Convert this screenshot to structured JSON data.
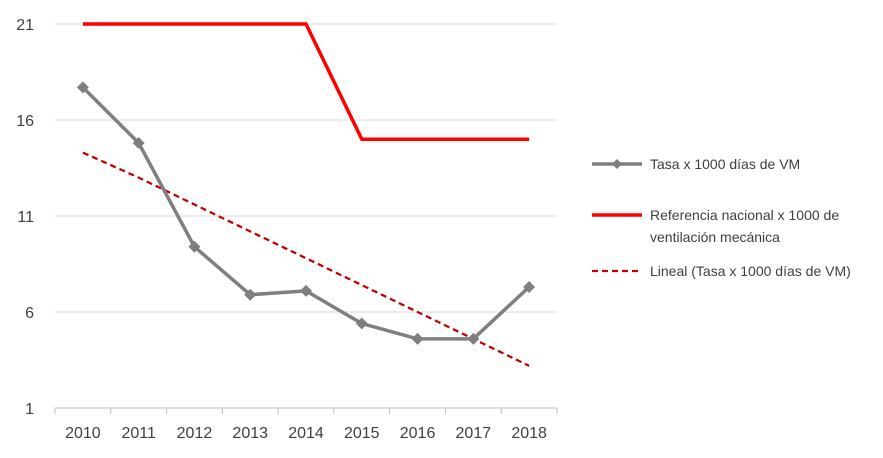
{
  "chart_data": {
    "type": "line",
    "categories": [
      "2010",
      "2011",
      "2012",
      "2013",
      "2014",
      "2015",
      "2016",
      "2017",
      "2018"
    ],
    "ylim": [
      1,
      21
    ],
    "yticks": [
      1,
      6,
      11,
      16,
      21
    ],
    "grid": true,
    "legend_position": "right",
    "series": [
      {
        "name": "Tasa x 1000 días de VM",
        "values": [
          17.7,
          14.8,
          9.4,
          6.9,
          7.1,
          5.4,
          4.6,
          4.6,
          7.3
        ],
        "color": "#7f7f7f",
        "style": "solid",
        "marker": "diamond"
      },
      {
        "name": "Referencia nacional x 1000 de ventilación mecánica",
        "name_lines": [
          "Referencia nacional x 1000 de",
          "ventilación mecánica"
        ],
        "values": [
          21,
          21,
          21,
          21,
          21,
          15,
          15,
          15,
          15
        ],
        "color": "#ff0000",
        "style": "solid",
        "marker": "none"
      },
      {
        "name": "Lineal (Tasa x 1000 días de VM)",
        "values": [
          14.3,
          13.0,
          11.6,
          10.2,
          8.8,
          7.4,
          6.0,
          4.6,
          3.2
        ],
        "color": "#c00000",
        "style": "dashed",
        "marker": "none"
      }
    ]
  }
}
